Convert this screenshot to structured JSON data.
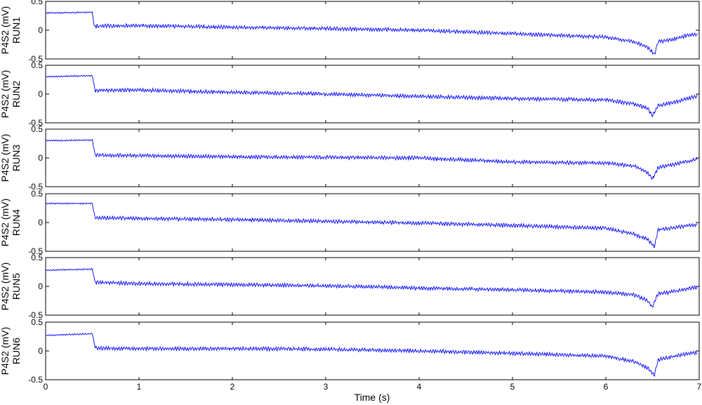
{
  "chart_data": {
    "type": "line",
    "line_color": "#0000ff",
    "xlabel": "Time (s)",
    "xlim": [
      0,
      7
    ],
    "xticks": [
      "0",
      "1",
      "2",
      "3",
      "4",
      "5",
      "6",
      "7"
    ],
    "ylim": [
      -0.5,
      0.5
    ],
    "yticks": [
      "0.5",
      "0",
      "-0.5"
    ],
    "grid": false,
    "panels": [
      {
        "ylabel_line1": "P4S2 (mV)",
        "ylabel_line2": "RUN1",
        "series": {
          "x": [
            0,
            0.5,
            0.52,
            1,
            2,
            3,
            4,
            5,
            6,
            6.3,
            6.45,
            6.52,
            6.56,
            6.7,
            6.9,
            6.98
          ],
          "y": [
            0.3,
            0.31,
            0.07,
            0.08,
            0.05,
            0.03,
            0,
            -0.06,
            -0.12,
            -0.2,
            -0.3,
            -0.42,
            -0.2,
            -0.17,
            -0.08,
            -0.07
          ]
        }
      },
      {
        "ylabel_line1": "P4S2 (mV)",
        "ylabel_line2": "RUN2",
        "series": {
          "x": [
            0,
            0.5,
            0.53,
            1,
            2,
            3,
            4,
            5,
            6,
            6.3,
            6.45,
            6.5,
            6.56,
            6.7,
            6.9,
            6.98
          ],
          "y": [
            0.3,
            0.32,
            0.06,
            0.07,
            0.03,
            0,
            -0.04,
            -0.08,
            -0.1,
            -0.17,
            -0.25,
            -0.38,
            -0.2,
            -0.15,
            -0.07,
            -0.03
          ]
        }
      },
      {
        "ylabel_line1": "P4S2 (mV)",
        "ylabel_line2": "RUN3",
        "series": {
          "x": [
            0,
            0.5,
            0.53,
            1,
            2,
            3,
            4,
            5,
            6,
            6.3,
            6.45,
            6.5,
            6.56,
            6.7,
            6.9,
            6.98
          ],
          "y": [
            0.3,
            0.31,
            0.05,
            0.04,
            0.02,
            0.01,
            0,
            -0.07,
            -0.09,
            -0.14,
            -0.25,
            -0.37,
            -0.17,
            -0.12,
            -0.05,
            -0.02
          ]
        }
      },
      {
        "ylabel_line1": "P4S2 (mV)",
        "ylabel_line2": "RUN4",
        "series": {
          "x": [
            0,
            0.5,
            0.53,
            1,
            2,
            3,
            4,
            5,
            6,
            6.3,
            6.45,
            6.52,
            6.56,
            6.7,
            6.9,
            6.98
          ],
          "y": [
            0.33,
            0.33,
            0.08,
            0.07,
            0.05,
            0.02,
            -0.01,
            -0.05,
            -0.1,
            -0.2,
            -0.3,
            -0.42,
            -0.12,
            -0.1,
            -0.05,
            -0.04
          ]
        }
      },
      {
        "ylabel_line1": "P4S2 (mV)",
        "ylabel_line2": "RUN5",
        "series": {
          "x": [
            0,
            0.5,
            0.53,
            1,
            2,
            3,
            4,
            5,
            6,
            6.3,
            6.45,
            6.5,
            6.56,
            6.7,
            6.9,
            6.98
          ],
          "y": [
            0.28,
            0.3,
            0.07,
            0.05,
            0.03,
            0.01,
            -0.03,
            -0.06,
            -0.1,
            -0.15,
            -0.25,
            -0.36,
            -0.12,
            -0.1,
            -0.03,
            -0.02
          ]
        }
      },
      {
        "ylabel_line1": "P4S2 (mV)",
        "ylabel_line2": "RUN6",
        "series": {
          "x": [
            0,
            0.5,
            0.53,
            1,
            2,
            3,
            4,
            5,
            6,
            6.3,
            6.45,
            6.52,
            6.56,
            6.7,
            6.9,
            6.98
          ],
          "y": [
            0.27,
            0.3,
            0.05,
            0.04,
            0.04,
            0.03,
            0,
            -0.04,
            -0.09,
            -0.18,
            -0.3,
            -0.42,
            -0.15,
            -0.1,
            -0.04,
            -0.03
          ]
        }
      }
    ]
  }
}
